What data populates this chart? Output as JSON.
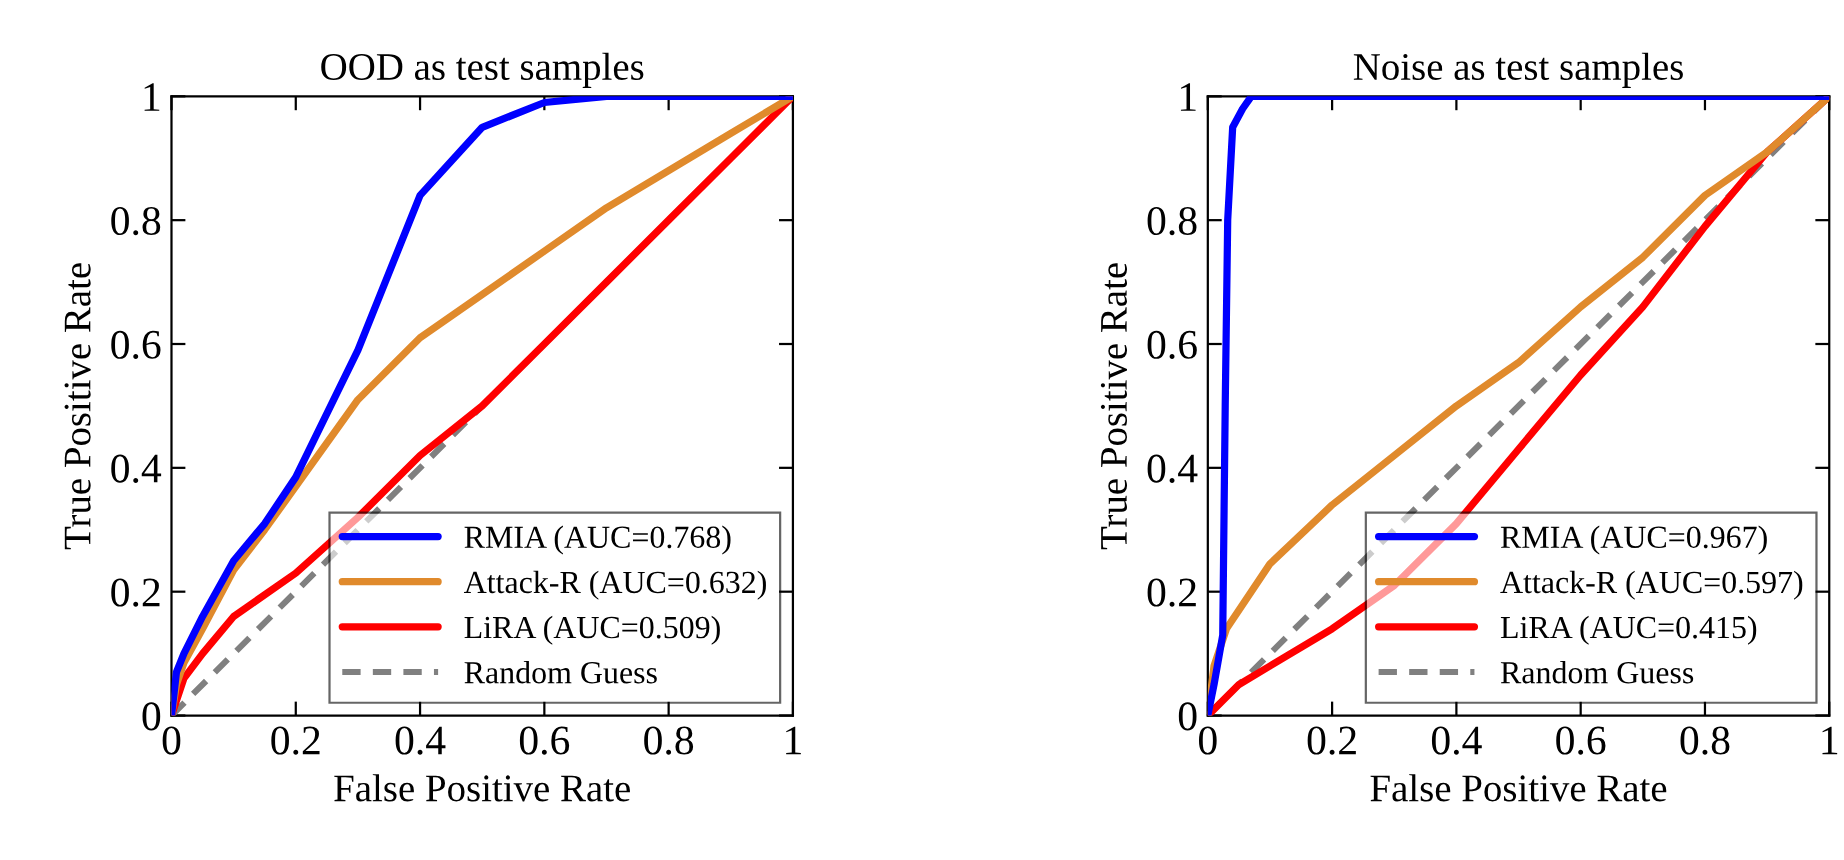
{
  "chart_data": [
    {
      "type": "line",
      "title": "OOD as test samples",
      "xlabel": "False Positive Rate",
      "ylabel": "True Positive Rate",
      "xlim": [
        0,
        1
      ],
      "ylim": [
        0,
        1
      ],
      "xticks": [
        0,
        0.2,
        0.4,
        0.6,
        0.8,
        1
      ],
      "yticks": [
        0,
        0.2,
        0.4,
        0.6,
        0.8,
        1
      ],
      "grid": false,
      "legend": "bottom right",
      "marker": "none",
      "series": [
        {
          "name": "RMIA (AUC=0.768)",
          "color": "#0000ff",
          "x": [
            0,
            0.008,
            0.02,
            0.05,
            0.1,
            0.15,
            0.2,
            0.3,
            0.4,
            0.5,
            0.6,
            0.7,
            1
          ],
          "values": [
            0,
            0.07,
            0.1,
            0.16,
            0.25,
            0.31,
            0.385,
            0.59,
            0.84,
            0.95,
            0.99,
            1,
            1
          ]
        },
        {
          "name": "Attack-R (AUC=0.632)",
          "color": "#e08a2c",
          "x": [
            0,
            0.008,
            0.02,
            0.05,
            0.1,
            0.15,
            0.2,
            0.3,
            0.4,
            0.5,
            0.6,
            0.7,
            0.8,
            0.9,
            1
          ],
          "values": [
            0,
            0.05,
            0.085,
            0.14,
            0.235,
            0.3,
            0.37,
            0.51,
            0.61,
            0.68,
            0.75,
            0.82,
            0.88,
            0.94,
            1
          ]
        },
        {
          "name": "LiRA (AUC=0.509)",
          "color": "#ff0000",
          "x": [
            0,
            0.02,
            0.05,
            0.1,
            0.2,
            0.3,
            0.4,
            0.5,
            0.6,
            0.7,
            0.8,
            0.9,
            1
          ],
          "values": [
            0,
            0.06,
            0.1,
            0.16,
            0.23,
            0.32,
            0.42,
            0.5,
            0.6,
            0.7,
            0.8,
            0.9,
            1
          ]
        },
        {
          "name": "Random Guess",
          "color": "#808080",
          "line_style": "dashed",
          "x": [
            0,
            1
          ],
          "values": [
            0,
            1
          ]
        }
      ]
    },
    {
      "type": "line",
      "title": "Noise as test samples",
      "xlabel": "False Positive Rate",
      "ylabel": "True Positive Rate",
      "xlim": [
        0,
        1
      ],
      "ylim": [
        0,
        1
      ],
      "xticks": [
        0,
        0.2,
        0.4,
        0.6,
        0.8,
        1
      ],
      "yticks": [
        0,
        0.2,
        0.4,
        0.6,
        0.8,
        1
      ],
      "grid": false,
      "legend": "bottom right",
      "marker": "none",
      "series": [
        {
          "name": "RMIA (AUC=0.967)",
          "color": "#0000ff",
          "x": [
            0,
            0.01,
            0.024,
            0.028,
            0.032,
            0.04,
            0.056,
            0.07,
            1
          ],
          "values": [
            0,
            0.05,
            0.13,
            0.5,
            0.8,
            0.95,
            0.98,
            1,
            1
          ]
        },
        {
          "name": "Attack-R (AUC=0.597)",
          "color": "#e08a2c",
          "x": [
            0,
            0.01,
            0.03,
            0.1,
            0.2,
            0.3,
            0.4,
            0.5,
            0.6,
            0.7,
            0.8,
            0.9,
            1
          ],
          "values": [
            0,
            0.08,
            0.14,
            0.245,
            0.34,
            0.42,
            0.5,
            0.57,
            0.66,
            0.74,
            0.84,
            0.91,
            1
          ]
        },
        {
          "name": "LiRA (AUC=0.415)",
          "color": "#ff0000",
          "x": [
            0,
            0.05,
            0.1,
            0.2,
            0.3,
            0.4,
            0.5,
            0.6,
            0.7,
            0.8,
            0.9,
            1
          ],
          "values": [
            0,
            0.05,
            0.08,
            0.14,
            0.21,
            0.31,
            0.43,
            0.55,
            0.66,
            0.79,
            0.91,
            1
          ]
        },
        {
          "name": "Random Guess",
          "color": "#808080",
          "line_style": "dashed",
          "x": [
            0,
            1
          ],
          "values": [
            0,
            1
          ]
        }
      ]
    }
  ]
}
